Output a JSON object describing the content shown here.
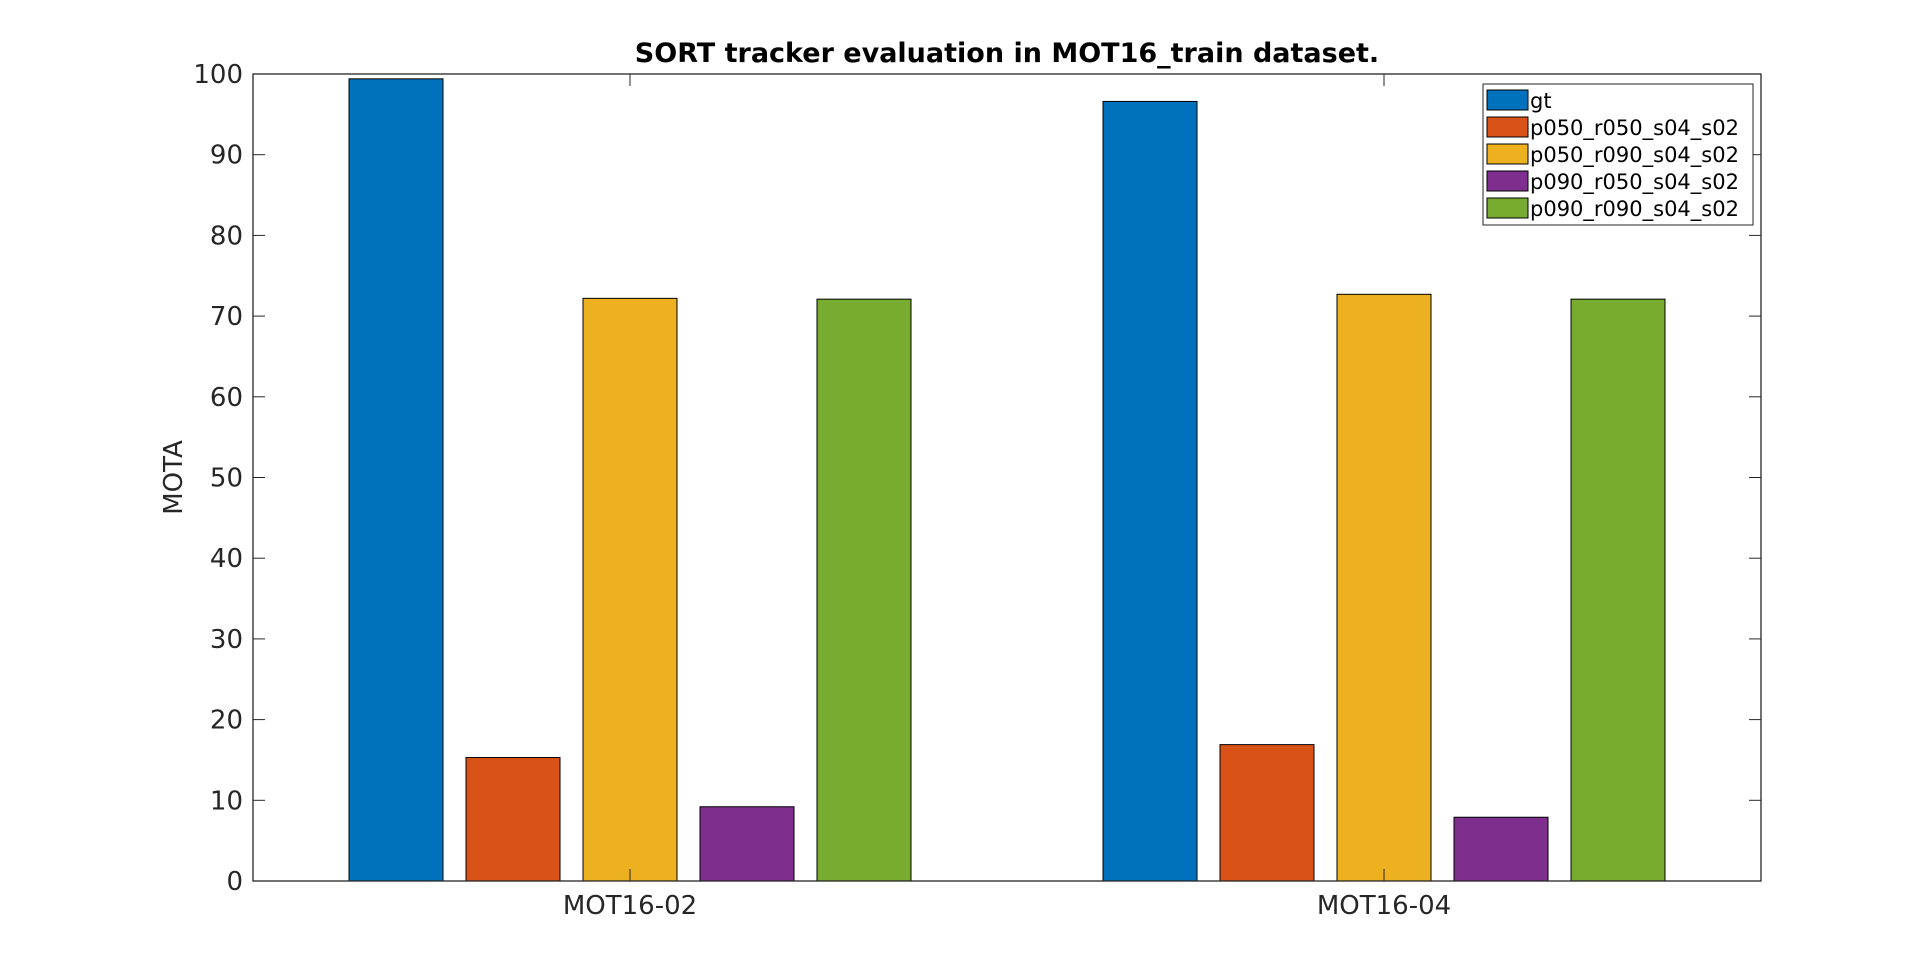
{
  "chart_data": {
    "type": "bar",
    "title": "SORT tracker evaluation in MOT16_train dataset.",
    "xlabel": "",
    "ylabel": "MOTA",
    "ylim": [
      0,
      100
    ],
    "yticks": [
      0,
      10,
      20,
      30,
      40,
      50,
      60,
      70,
      80,
      90,
      100
    ],
    "categories": [
      "MOT16-02",
      "MOT16-04"
    ],
    "series": [
      {
        "name": "gt",
        "color": "#0072BD",
        "values": [
          99.4,
          96.6
        ]
      },
      {
        "name": "p050_r050_s04_s02",
        "color": "#D95319",
        "values": [
          15.3,
          16.9
        ]
      },
      {
        "name": "p050_r090_s04_s02",
        "color": "#EDB120",
        "values": [
          72.2,
          72.7
        ]
      },
      {
        "name": "p090_r050_s04_s02",
        "color": "#7E2F8E",
        "values": [
          9.2,
          7.9
        ]
      },
      {
        "name": "p090_r090_s04_s02",
        "color": "#77AC30",
        "values": [
          72.1,
          72.1
        ]
      }
    ],
    "grid": false,
    "legend_position": "top-right"
  }
}
